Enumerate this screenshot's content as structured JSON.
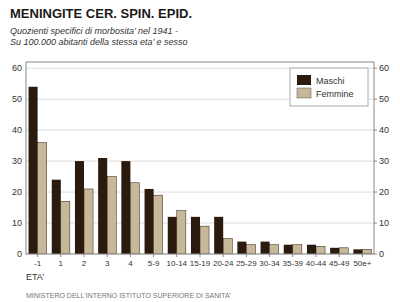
{
  "chart_data": {
    "type": "bar",
    "title": "MENINGITE CER. SPIN. EPID.",
    "subtitle": "Quozienti specifici di morbosita’ nel 1941 -\nSu 100.000 abitanti della stessa eta’ e sesso",
    "x_label": "ETA’",
    "annotations": [
      "MINISTERO DELL'INTERNO    ISTITUTO SUPERIORE DI SANITA’"
    ],
    "categories": [
      "-1",
      "1",
      "2",
      "3",
      "4",
      "5-9",
      "10-14",
      "15-19",
      "20-24",
      "25-29",
      "30-34",
      "35-39",
      "40-44",
      "45-49",
      "50e+"
    ],
    "series": [
      {
        "name": "Maschi",
        "color": "#2b1a0e",
        "values": [
          54,
          24,
          30,
          31,
          30,
          21,
          12,
          12,
          12,
          4,
          4,
          3,
          3,
          2,
          1.5
        ]
      },
      {
        "name": "Femmine",
        "color": "#c8b89a",
        "values": [
          36,
          17,
          21,
          25,
          23,
          19,
          14,
          9,
          5,
          3,
          3,
          3,
          2.5,
          2,
          1.5
        ]
      }
    ],
    "ylim": [
      0,
      62
    ],
    "yticks": [
      0,
      10,
      20,
      30,
      40,
      50,
      60
    ],
    "y2lim": [
      0,
      62
    ],
    "y2ticks": [
      0,
      10,
      20,
      30,
      40,
      50,
      60
    ],
    "grid": true,
    "legend": "upper right"
  }
}
